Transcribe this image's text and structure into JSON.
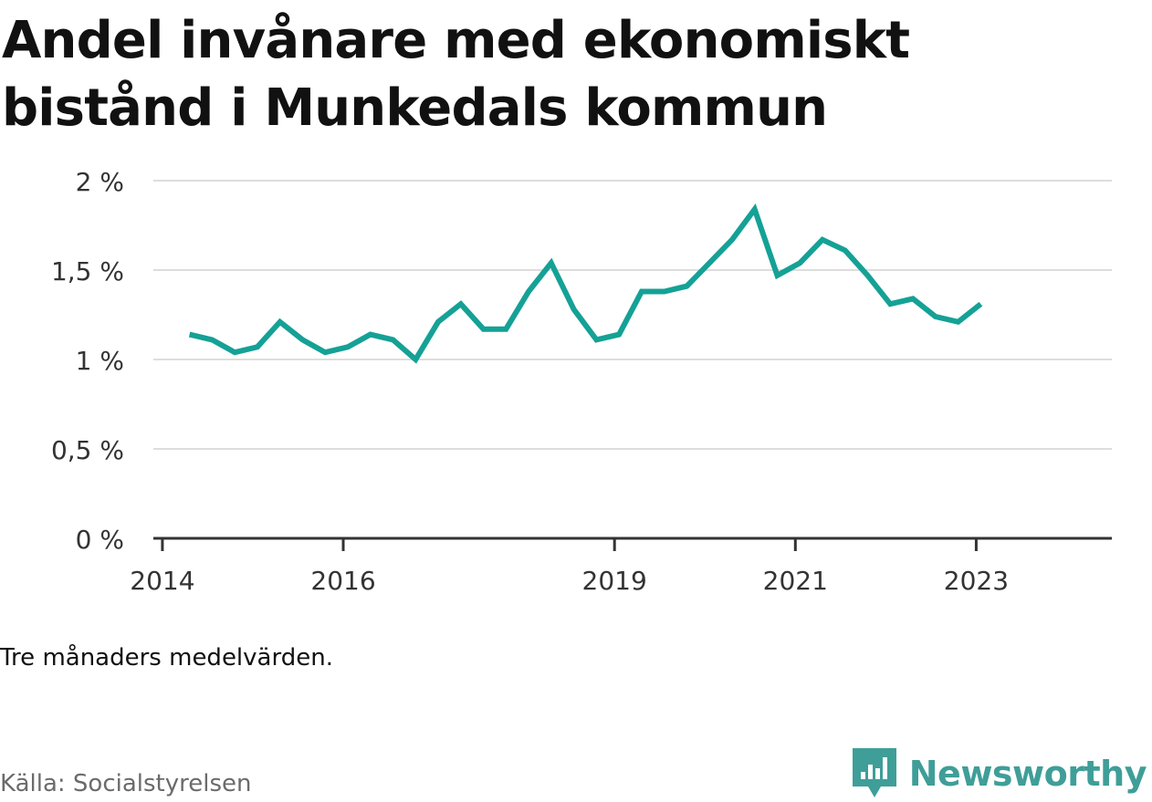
{
  "title": "Andel invånare med ekonomiskt bistånd i Munkedals kommun",
  "note": "Tre månaders medelvärden.",
  "source": "Källa: Socialstyrelsen",
  "brand": {
    "name": "Newsworthy",
    "icon": "newsworthy-logo-icon",
    "color": "#3f9e98"
  },
  "chart_data": {
    "type": "line",
    "title": "Andel invånare med ekonomiskt bistånd i Munkedals kommun",
    "xlabel": "",
    "ylabel": "",
    "y_ticks": [
      {
        "value": 0,
        "label": "0 %"
      },
      {
        "value": 0.5,
        "label": "0,5 %"
      },
      {
        "value": 1,
        "label": "1 %"
      },
      {
        "value": 1.5,
        "label": "1,5 %"
      },
      {
        "value": 2,
        "label": "2 %"
      }
    ],
    "x_ticks": [
      {
        "value": 2014.0,
        "label": "2014"
      },
      {
        "value": 2016.0,
        "label": "2016"
      },
      {
        "value": 2019.0,
        "label": "2019"
      },
      {
        "value": 2021.0,
        "label": "2021"
      },
      {
        "value": 2023.0,
        "label": "2023"
      }
    ],
    "xlim": [
      2013.9,
      2024.5
    ],
    "ylim": [
      0,
      2
    ],
    "grid": true,
    "line_color": "#15a196",
    "series": [
      {
        "x": [
          2014.3,
          2014.55,
          2014.8,
          2015.05,
          2015.3,
          2015.55,
          2015.8,
          2016.05,
          2016.3,
          2016.55,
          2016.8,
          2017.05,
          2017.3,
          2017.55,
          2017.8,
          2018.05,
          2018.3,
          2018.55,
          2018.8,
          2019.05,
          2019.3,
          2019.55,
          2019.8,
          2020.05,
          2020.3,
          2020.55,
          2020.8,
          2021.05,
          2021.3,
          2021.55,
          2021.8,
          2022.05,
          2022.3,
          2022.55,
          2022.8,
          2023.05
        ],
        "y": [
          1.14,
          1.11,
          1.04,
          1.07,
          1.21,
          1.11,
          1.04,
          1.07,
          1.14,
          1.11,
          1.0,
          1.21,
          1.31,
          1.17,
          1.17,
          1.38,
          1.54,
          1.28,
          1.11,
          1.14,
          1.38,
          1.38,
          1.41,
          1.54,
          1.67,
          1.84,
          1.47,
          1.54,
          1.67,
          1.61,
          1.47,
          1.31,
          1.34,
          1.24,
          1.21,
          1.31
        ]
      }
    ]
  }
}
